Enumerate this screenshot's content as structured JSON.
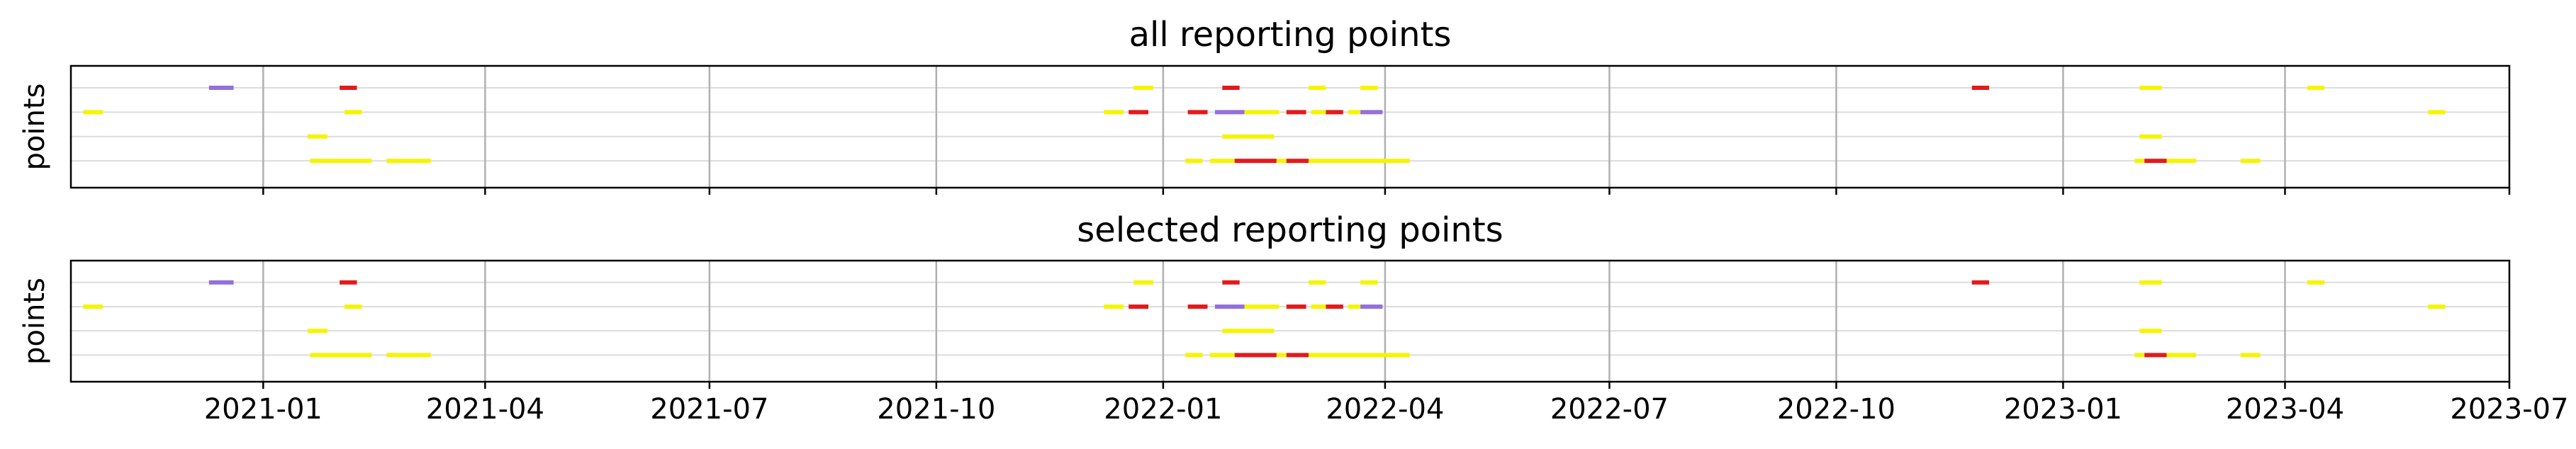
{
  "chart_data": [
    {
      "type": "timeline",
      "title": "all reporting points",
      "ylabel": "points",
      "xlim": [
        "2020-10-15",
        "2023-07-01"
      ],
      "xticks": [
        "2021-01",
        "2021-04",
        "2021-07",
        "2021-10",
        "2022-01",
        "2022-04",
        "2022-07",
        "2022-10",
        "2023-01",
        "2023-04",
        "2023-07"
      ],
      "tick_labels_visible": false,
      "rows": 4,
      "grid": "vertical gridlines at x ticks; faint horizontal lines at each row",
      "colors": {
        "red": "#e31a1c",
        "yellow": "#f5f500",
        "purple": "#9370db"
      },
      "segments": [
        {
          "row": 0,
          "start": "2020-12-10",
          "end": "2020-12-20",
          "color": "purple"
        },
        {
          "row": 0,
          "start": "2021-02-01",
          "end": "2021-02-08",
          "color": "red"
        },
        {
          "row": 0,
          "start": "2021-12-20",
          "end": "2021-12-28",
          "color": "yellow"
        },
        {
          "row": 0,
          "start": "2022-01-25",
          "end": "2022-02-01",
          "color": "red"
        },
        {
          "row": 0,
          "start": "2022-03-01",
          "end": "2022-03-08",
          "color": "yellow"
        },
        {
          "row": 0,
          "start": "2022-03-22",
          "end": "2022-03-29",
          "color": "yellow"
        },
        {
          "row": 0,
          "start": "2022-11-25",
          "end": "2022-12-02",
          "color": "red"
        },
        {
          "row": 0,
          "start": "2023-02-01",
          "end": "2023-02-10",
          "color": "yellow"
        },
        {
          "row": 0,
          "start": "2023-04-10",
          "end": "2023-04-17",
          "color": "yellow"
        },
        {
          "row": 1,
          "start": "2020-10-20",
          "end": "2020-10-28",
          "color": "yellow"
        },
        {
          "row": 1,
          "start": "2021-02-03",
          "end": "2021-02-10",
          "color": "yellow"
        },
        {
          "row": 1,
          "start": "2021-12-08",
          "end": "2021-12-16",
          "color": "yellow"
        },
        {
          "row": 1,
          "start": "2021-12-18",
          "end": "2021-12-26",
          "color": "red"
        },
        {
          "row": 1,
          "start": "2022-01-11",
          "end": "2022-01-19",
          "color": "red"
        },
        {
          "row": 1,
          "start": "2022-01-22",
          "end": "2022-02-03",
          "color": "purple"
        },
        {
          "row": 1,
          "start": "2022-02-03",
          "end": "2022-02-17",
          "color": "yellow"
        },
        {
          "row": 1,
          "start": "2022-02-20",
          "end": "2022-02-28",
          "color": "red"
        },
        {
          "row": 1,
          "start": "2022-03-02",
          "end": "2022-03-08",
          "color": "yellow"
        },
        {
          "row": 1,
          "start": "2022-03-08",
          "end": "2022-03-15",
          "color": "red"
        },
        {
          "row": 1,
          "start": "2022-03-17",
          "end": "2022-03-22",
          "color": "yellow"
        },
        {
          "row": 1,
          "start": "2022-03-22",
          "end": "2022-03-31",
          "color": "purple"
        },
        {
          "row": 1,
          "start": "2023-05-29",
          "end": "2023-06-05",
          "color": "yellow"
        },
        {
          "row": 2,
          "start": "2021-01-19",
          "end": "2021-01-27",
          "color": "yellow"
        },
        {
          "row": 2,
          "start": "2022-01-25",
          "end": "2022-02-15",
          "color": "yellow"
        },
        {
          "row": 2,
          "start": "2023-02-01",
          "end": "2023-02-10",
          "color": "yellow"
        },
        {
          "row": 3,
          "start": "2021-01-20",
          "end": "2021-02-14",
          "color": "yellow"
        },
        {
          "row": 3,
          "start": "2021-02-20",
          "end": "2021-03-10",
          "color": "yellow"
        },
        {
          "row": 3,
          "start": "2022-01-10",
          "end": "2022-01-17",
          "color": "yellow"
        },
        {
          "row": 3,
          "start": "2022-01-20",
          "end": "2022-01-30",
          "color": "yellow"
        },
        {
          "row": 3,
          "start": "2022-01-30",
          "end": "2022-02-16",
          "color": "red"
        },
        {
          "row": 3,
          "start": "2022-02-16",
          "end": "2022-02-20",
          "color": "yellow"
        },
        {
          "row": 3,
          "start": "2022-02-20",
          "end": "2022-03-01",
          "color": "red"
        },
        {
          "row": 3,
          "start": "2022-03-01",
          "end": "2022-04-11",
          "color": "yellow"
        },
        {
          "row": 3,
          "start": "2023-01-30",
          "end": "2023-02-03",
          "color": "yellow"
        },
        {
          "row": 3,
          "start": "2023-02-03",
          "end": "2023-02-12",
          "color": "red"
        },
        {
          "row": 3,
          "start": "2023-02-12",
          "end": "2023-02-24",
          "color": "yellow"
        },
        {
          "row": 3,
          "start": "2023-03-14",
          "end": "2023-03-22",
          "color": "yellow"
        }
      ]
    },
    {
      "type": "timeline",
      "title": "selected reporting points",
      "ylabel": "points",
      "xlim": [
        "2020-10-15",
        "2023-07-01"
      ],
      "xticks": [
        "2021-01",
        "2021-04",
        "2021-07",
        "2021-10",
        "2022-01",
        "2022-04",
        "2022-07",
        "2022-10",
        "2023-01",
        "2023-04",
        "2023-07"
      ],
      "tick_labels_visible": true,
      "rows": 4,
      "grid": "vertical gridlines at x ticks; faint horizontal lines at each row",
      "colors": {
        "red": "#e31a1c",
        "yellow": "#f5f500",
        "purple": "#9370db"
      },
      "segments": [
        {
          "row": 0,
          "start": "2020-12-10",
          "end": "2020-12-20",
          "color": "purple"
        },
        {
          "row": 0,
          "start": "2021-02-01",
          "end": "2021-02-08",
          "color": "red"
        },
        {
          "row": 0,
          "start": "2021-12-20",
          "end": "2021-12-28",
          "color": "yellow"
        },
        {
          "row": 0,
          "start": "2022-01-25",
          "end": "2022-02-01",
          "color": "red"
        },
        {
          "row": 0,
          "start": "2022-03-01",
          "end": "2022-03-08",
          "color": "yellow"
        },
        {
          "row": 0,
          "start": "2022-03-22",
          "end": "2022-03-29",
          "color": "yellow"
        },
        {
          "row": 0,
          "start": "2022-11-25",
          "end": "2022-12-02",
          "color": "red"
        },
        {
          "row": 0,
          "start": "2023-02-01",
          "end": "2023-02-10",
          "color": "yellow"
        },
        {
          "row": 0,
          "start": "2023-04-10",
          "end": "2023-04-17",
          "color": "yellow"
        },
        {
          "row": 1,
          "start": "2020-10-20",
          "end": "2020-10-28",
          "color": "yellow"
        },
        {
          "row": 1,
          "start": "2021-02-03",
          "end": "2021-02-10",
          "color": "yellow"
        },
        {
          "row": 1,
          "start": "2021-12-08",
          "end": "2021-12-16",
          "color": "yellow"
        },
        {
          "row": 1,
          "start": "2021-12-18",
          "end": "2021-12-26",
          "color": "red"
        },
        {
          "row": 1,
          "start": "2022-01-11",
          "end": "2022-01-19",
          "color": "red"
        },
        {
          "row": 1,
          "start": "2022-01-22",
          "end": "2022-02-03",
          "color": "purple"
        },
        {
          "row": 1,
          "start": "2022-02-03",
          "end": "2022-02-17",
          "color": "yellow"
        },
        {
          "row": 1,
          "start": "2022-02-20",
          "end": "2022-02-28",
          "color": "red"
        },
        {
          "row": 1,
          "start": "2022-03-02",
          "end": "2022-03-08",
          "color": "yellow"
        },
        {
          "row": 1,
          "start": "2022-03-08",
          "end": "2022-03-15",
          "color": "red"
        },
        {
          "row": 1,
          "start": "2022-03-17",
          "end": "2022-03-22",
          "color": "yellow"
        },
        {
          "row": 1,
          "start": "2022-03-22",
          "end": "2022-03-31",
          "color": "purple"
        },
        {
          "row": 1,
          "start": "2023-05-29",
          "end": "2023-06-05",
          "color": "yellow"
        },
        {
          "row": 2,
          "start": "2021-01-19",
          "end": "2021-01-27",
          "color": "yellow"
        },
        {
          "row": 2,
          "start": "2022-01-25",
          "end": "2022-02-15",
          "color": "yellow"
        },
        {
          "row": 2,
          "start": "2023-02-01",
          "end": "2023-02-10",
          "color": "yellow"
        },
        {
          "row": 3,
          "start": "2021-01-20",
          "end": "2021-02-14",
          "color": "yellow"
        },
        {
          "row": 3,
          "start": "2021-02-20",
          "end": "2021-03-10",
          "color": "yellow"
        },
        {
          "row": 3,
          "start": "2022-01-10",
          "end": "2022-01-17",
          "color": "yellow"
        },
        {
          "row": 3,
          "start": "2022-01-20",
          "end": "2022-01-30",
          "color": "yellow"
        },
        {
          "row": 3,
          "start": "2022-01-30",
          "end": "2022-02-16",
          "color": "red"
        },
        {
          "row": 3,
          "start": "2022-02-16",
          "end": "2022-02-20",
          "color": "yellow"
        },
        {
          "row": 3,
          "start": "2022-02-20",
          "end": "2022-03-01",
          "color": "red"
        },
        {
          "row": 3,
          "start": "2022-03-01",
          "end": "2022-04-11",
          "color": "yellow"
        },
        {
          "row": 3,
          "start": "2023-01-30",
          "end": "2023-02-03",
          "color": "yellow"
        },
        {
          "row": 3,
          "start": "2023-02-03",
          "end": "2023-02-12",
          "color": "red"
        },
        {
          "row": 3,
          "start": "2023-02-12",
          "end": "2023-02-24",
          "color": "yellow"
        },
        {
          "row": 3,
          "start": "2023-03-14",
          "end": "2023-03-22",
          "color": "yellow"
        }
      ]
    }
  ]
}
